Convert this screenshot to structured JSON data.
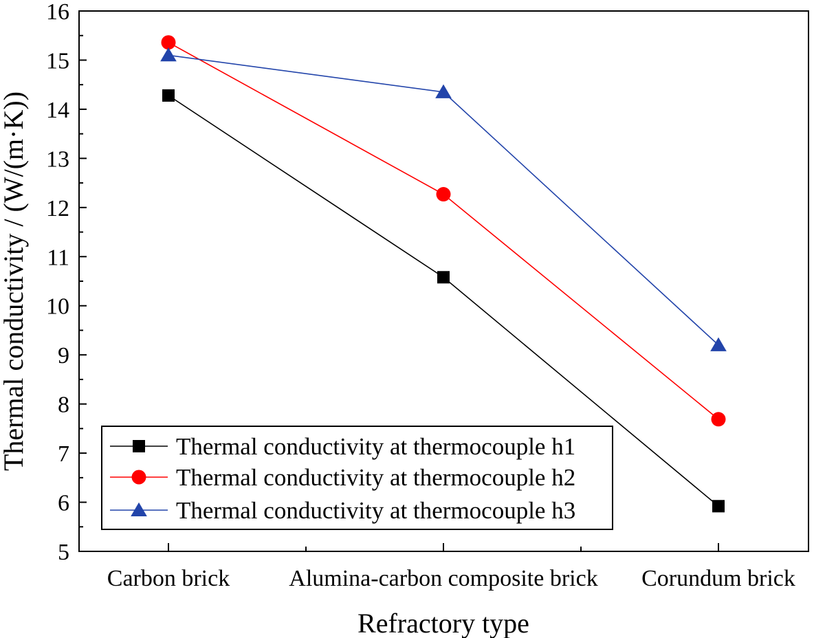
{
  "chart_data": {
    "type": "line",
    "title": "",
    "xlabel": "Refractory type",
    "ylabel": "Thermal conductivity / (W/(m·K))",
    "categories": [
      "Carbon brick",
      "Alumina-carbon composite brick",
      "Corundum brick"
    ],
    "ylim": [
      5,
      16
    ],
    "yticks": [
      "5",
      "6",
      "7",
      "8",
      "9",
      "10",
      "11",
      "12",
      "13",
      "14",
      "15",
      "16"
    ],
    "grid": false,
    "legend_position": "bottom-left",
    "series": [
      {
        "name": "Thermal conductivity at thermocouple h1",
        "marker": "square",
        "color": "#000000",
        "values": [
          14.28,
          10.58,
          5.92
        ]
      },
      {
        "name": "Thermal conductivity at thermocouple h2",
        "marker": "circle",
        "color": "#ff0000",
        "values": [
          15.36,
          12.27,
          7.69
        ]
      },
      {
        "name": "Thermal conductivity at thermocouple h3",
        "marker": "triangle",
        "color": "#2244aa",
        "values": [
          15.1,
          14.35,
          9.2
        ]
      }
    ]
  }
}
